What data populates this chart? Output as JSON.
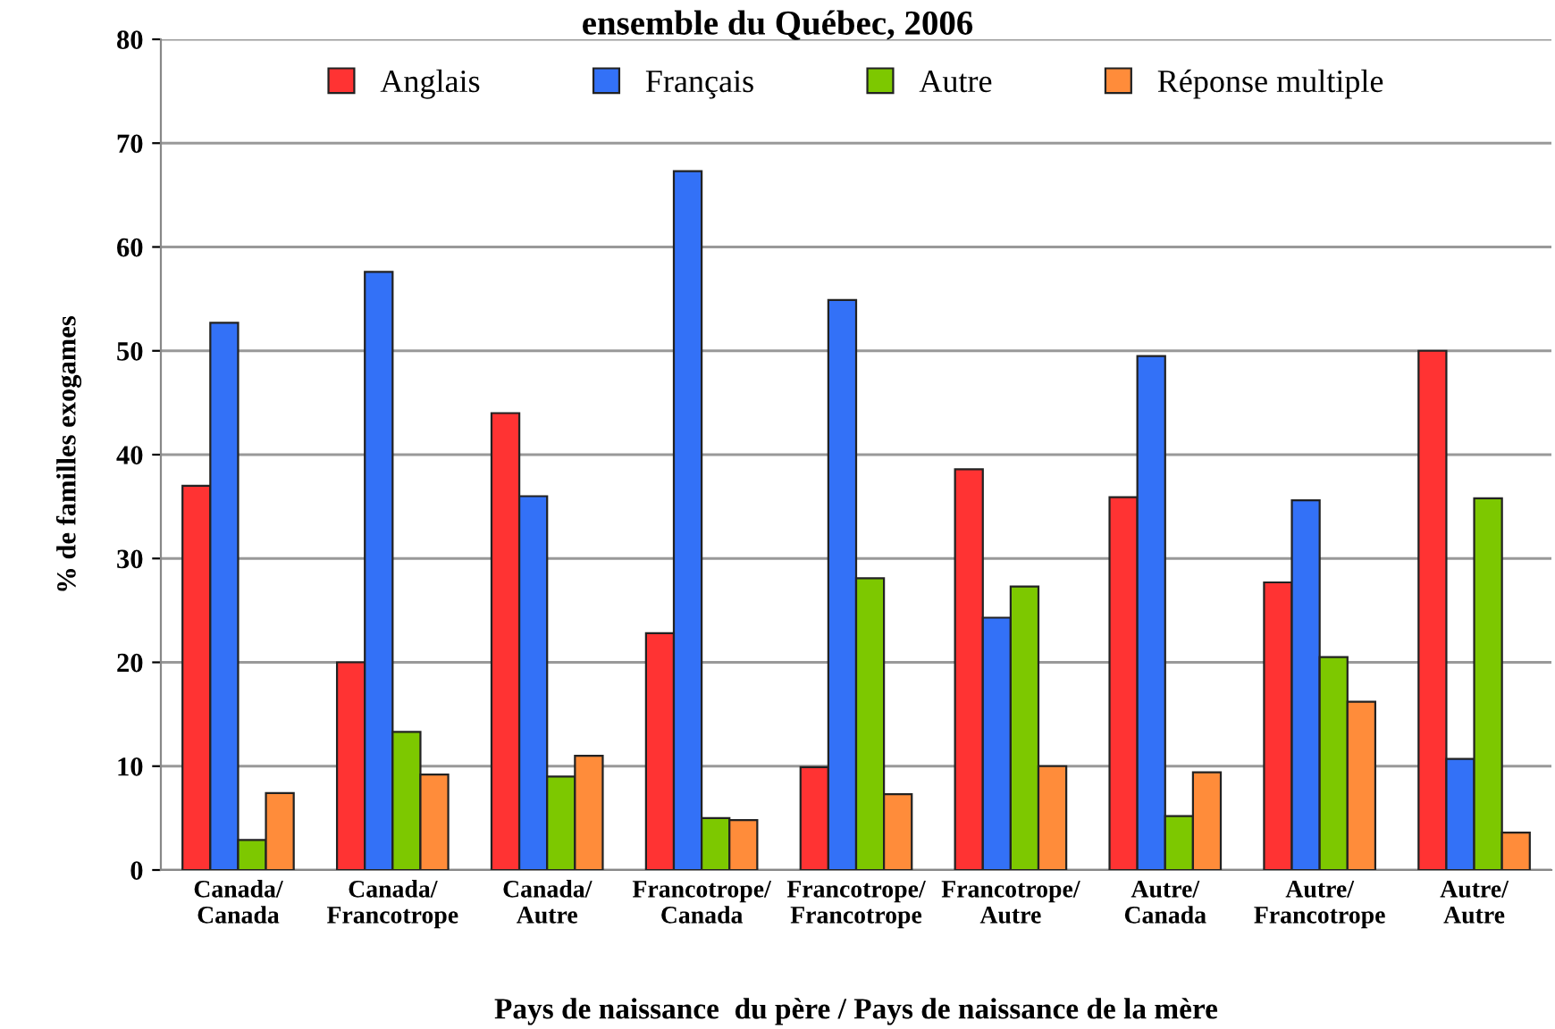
{
  "chart_data": {
    "type": "bar",
    "title": "ensemble du Québec, 2006",
    "xlabel": "Pays de naissance  du père / Pays de naissance de la mère",
    "ylabel": "% de familles exogames",
    "categories": [
      "Canada/\nCanada",
      "Canada/\nFrancotrope",
      "Canada/\nAutre",
      "Francotrope/\nCanada",
      "Francotrope/\nFrancotrope",
      "Francotrope/\nAutre",
      "Autre/\nCanada",
      "Autre/\nFrancotrope",
      "Autre/\nAutre"
    ],
    "series": [
      {
        "name": "Anglais",
        "color": "#ff3333",
        "values": [
          37,
          20,
          44,
          22.8,
          9.9,
          38.6,
          35.9,
          27.7,
          50
        ]
      },
      {
        "name": "Français",
        "color": "#3371f7",
        "values": [
          52.7,
          57.6,
          36,
          67.3,
          54.9,
          24.3,
          49.5,
          35.6,
          10.7
        ]
      },
      {
        "name": "Autre",
        "color": "#7dc800",
        "values": [
          2.9,
          13.3,
          9,
          5,
          28.1,
          27.3,
          5.2,
          20.5,
          35.8
        ]
      },
      {
        "name": "Réponse multiple",
        "color": "#ff8c3a",
        "values": [
          7.4,
          9.2,
          11,
          4.8,
          7.3,
          10,
          9.4,
          16.2,
          3.6
        ]
      }
    ],
    "ylim": [
      0,
      80
    ],
    "yticks": [
      0,
      10,
      20,
      30,
      40,
      50,
      60,
      70,
      80
    ],
    "grid": "y",
    "legend": "top"
  }
}
